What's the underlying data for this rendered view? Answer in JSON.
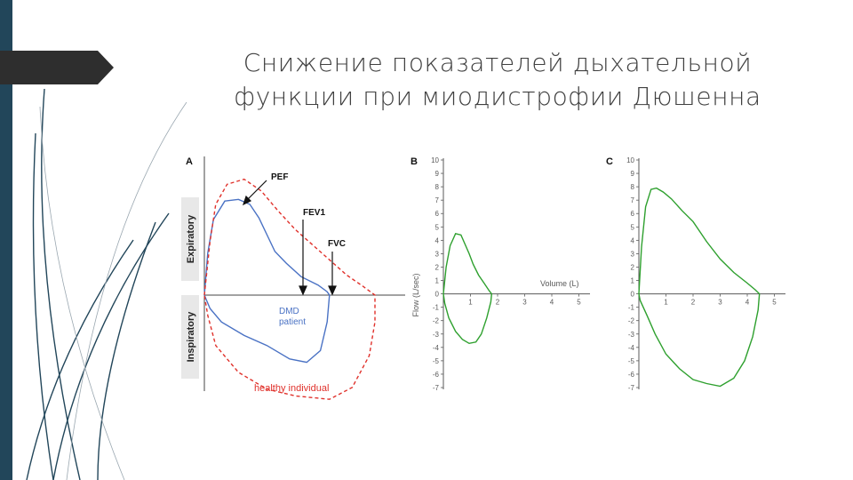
{
  "slide": {
    "title_line1": "Снижение показателей дыхательной",
    "title_line2": "функции при миодистрофии Дюшенна",
    "colors": {
      "band": "#22465a",
      "arrow": "#2e2e2e",
      "healthy": "#e0312b",
      "dmd": "#4a72c4",
      "panel_bc": "#2ea02e"
    }
  },
  "chart_data": [
    {
      "panel": "A",
      "type": "line",
      "side_labels": [
        "Expiratory",
        "Inspiratory"
      ],
      "annotations": [
        "PEF",
        "FEV1",
        "FVC"
      ],
      "dmd_label": [
        "DMD",
        "patient"
      ],
      "healthy_label": "healthy individual",
      "series": [
        {
          "name": "DMD patient",
          "style": "solid",
          "color": "#4a72c4",
          "points": [
            [
              0,
              0
            ],
            [
              0.03,
              2.5
            ],
            [
              0.08,
              4.5
            ],
            [
              0.18,
              5.6
            ],
            [
              0.3,
              5.7
            ],
            [
              0.4,
              5.4
            ],
            [
              0.48,
              4.6
            ],
            [
              0.55,
              3.6
            ],
            [
              0.62,
              2.6
            ],
            [
              0.72,
              1.9
            ],
            [
              0.85,
              1.1
            ],
            [
              1.0,
              0.6
            ],
            [
              1.08,
              0.2
            ],
            [
              1.1,
              0
            ],
            [
              1.08,
              -1.6
            ],
            [
              1.02,
              -3.3
            ],
            [
              0.9,
              -4.0
            ],
            [
              0.75,
              -3.8
            ],
            [
              0.55,
              -3.0
            ],
            [
              0.35,
              -2.4
            ],
            [
              0.15,
              -1.6
            ],
            [
              0.05,
              -0.8
            ],
            [
              0,
              0
            ]
          ]
        },
        {
          "name": "healthy individual",
          "style": "dashed",
          "color": "#e0312b",
          "points": [
            [
              0,
              0
            ],
            [
              0.05,
              3.2
            ],
            [
              0.1,
              5.4
            ],
            [
              0.2,
              6.6
            ],
            [
              0.35,
              6.9
            ],
            [
              0.5,
              6.2
            ],
            [
              0.65,
              5.0
            ],
            [
              0.8,
              3.9
            ],
            [
              0.95,
              3.0
            ],
            [
              1.1,
              2.1
            ],
            [
              1.25,
              1.2
            ],
            [
              1.4,
              0.5
            ],
            [
              1.48,
              0.1
            ],
            [
              1.5,
              0
            ],
            [
              1.5,
              -1.6
            ],
            [
              1.45,
              -3.6
            ],
            [
              1.3,
              -5.5
            ],
            [
              1.1,
              -6.2
            ],
            [
              0.8,
              -6.0
            ],
            [
              0.55,
              -5.6
            ],
            [
              0.3,
              -4.6
            ],
            [
              0.1,
              -3.0
            ],
            [
              0.03,
              -1.2
            ],
            [
              0,
              0
            ]
          ]
        }
      ]
    },
    {
      "panel": "B",
      "type": "line",
      "xlabel": "Volume (L)",
      "ylabel": "Flow (L/sec)",
      "xlim": [
        0,
        5.5
      ],
      "ylim": [
        -7,
        10
      ],
      "x_ticks": [
        1,
        2,
        3,
        4,
        5
      ],
      "y_ticks": [
        10,
        9,
        8,
        7,
        6,
        5,
        4,
        3,
        2,
        1,
        0,
        -1,
        -2,
        -3,
        -4,
        -5,
        -6,
        -7
      ],
      "series": [
        {
          "color": "#2ea02e",
          "points": [
            [
              0,
              0
            ],
            [
              0.1,
              2.0
            ],
            [
              0.25,
              3.6
            ],
            [
              0.45,
              4.5
            ],
            [
              0.65,
              4.4
            ],
            [
              0.8,
              3.7
            ],
            [
              0.95,
              3.0
            ],
            [
              1.1,
              2.2
            ],
            [
              1.3,
              1.4
            ],
            [
              1.5,
              0.8
            ],
            [
              1.7,
              0.2
            ],
            [
              1.78,
              0
            ],
            [
              1.75,
              -0.6
            ],
            [
              1.6,
              -1.8
            ],
            [
              1.4,
              -3.0
            ],
            [
              1.2,
              -3.6
            ],
            [
              0.95,
              -3.7
            ],
            [
              0.7,
              -3.4
            ],
            [
              0.45,
              -2.8
            ],
            [
              0.2,
              -1.8
            ],
            [
              0.05,
              -0.7
            ],
            [
              0,
              0
            ]
          ]
        }
      ]
    },
    {
      "panel": "C",
      "type": "line",
      "xlim": [
        0,
        5.5
      ],
      "ylim": [
        -7,
        10
      ],
      "x_ticks": [
        1,
        2,
        3,
        4,
        5
      ],
      "y_ticks": [
        10,
        9,
        8,
        7,
        6,
        5,
        4,
        3,
        2,
        1,
        0,
        -1,
        -2,
        -3,
        -4,
        -5,
        -6,
        -7
      ],
      "series": [
        {
          "color": "#2ea02e",
          "points": [
            [
              0,
              0
            ],
            [
              0.1,
              3.5
            ],
            [
              0.25,
              6.5
            ],
            [
              0.45,
              7.8
            ],
            [
              0.65,
              7.9
            ],
            [
              0.9,
              7.6
            ],
            [
              1.2,
              7.1
            ],
            [
              1.6,
              6.2
            ],
            [
              2.0,
              5.4
            ],
            [
              2.5,
              3.9
            ],
            [
              3.0,
              2.6
            ],
            [
              3.5,
              1.6
            ],
            [
              4.0,
              0.8
            ],
            [
              4.3,
              0.3
            ],
            [
              4.45,
              0
            ],
            [
              4.4,
              -1.2
            ],
            [
              4.2,
              -3.2
            ],
            [
              3.9,
              -5.0
            ],
            [
              3.5,
              -6.3
            ],
            [
              3.0,
              -6.9
            ],
            [
              2.5,
              -6.7
            ],
            [
              2.0,
              -6.4
            ],
            [
              1.5,
              -5.6
            ],
            [
              1.0,
              -4.5
            ],
            [
              0.6,
              -3.0
            ],
            [
              0.3,
              -1.6
            ],
            [
              0.05,
              -0.5
            ],
            [
              0,
              0
            ]
          ]
        }
      ]
    }
  ]
}
